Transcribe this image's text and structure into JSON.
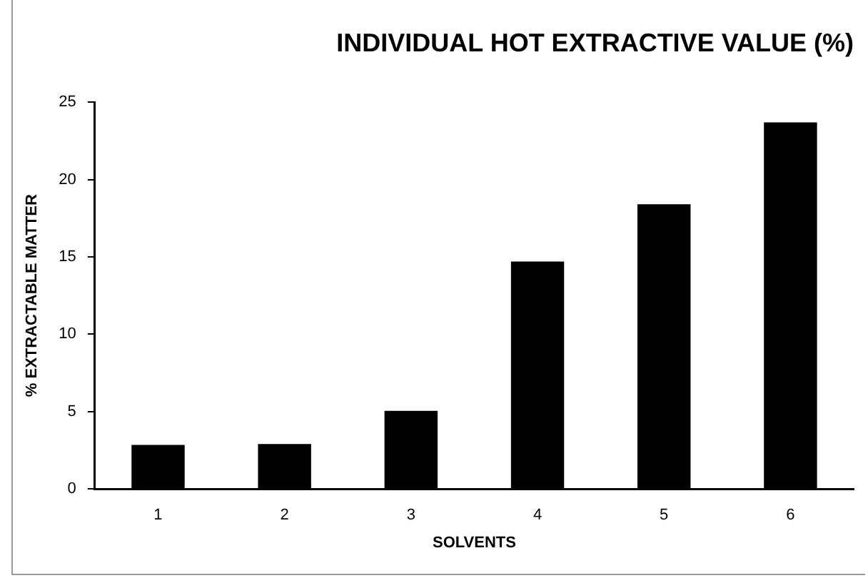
{
  "chart_data": {
    "type": "bar",
    "title": "INDIVIDUAL HOT EXTRACTIVE VALUE (%)",
    "xlabel": "SOLVENTS",
    "ylabel": "% EXTRACTABLE MATTER",
    "categories": [
      "1",
      "2",
      "3",
      "4",
      "5",
      "6"
    ],
    "values": [
      2.85,
      2.9,
      5.05,
      14.7,
      18.4,
      23.7
    ],
    "color": "#000000",
    "ylim": [
      0,
      25
    ],
    "yticks": [
      0,
      5,
      10,
      15,
      20,
      25
    ],
    "grid": false,
    "legend": false
  }
}
